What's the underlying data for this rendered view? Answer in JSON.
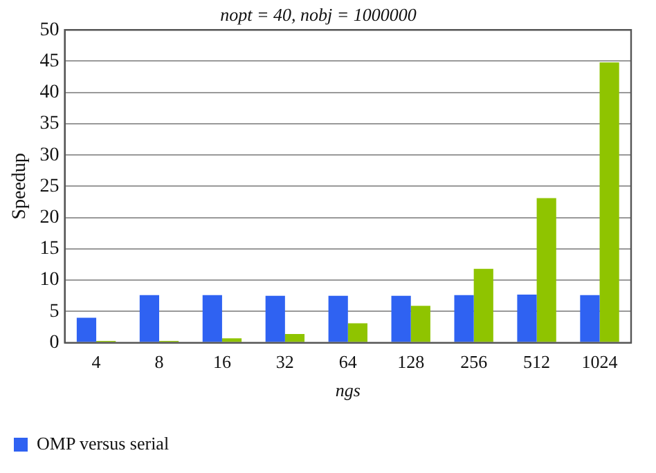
{
  "chart_data": {
    "type": "bar",
    "title": "nopt = 40, nobj = 1000000",
    "xlabel": "ngs",
    "ylabel": "Speedup",
    "categories": [
      "4",
      "8",
      "16",
      "32",
      "64",
      "128",
      "256",
      "512",
      "1024"
    ],
    "series": [
      {
        "name": "OMP versus serial",
        "color": "#2f62f2",
        "values": [
          4.0,
          7.6,
          7.6,
          7.5,
          7.5,
          7.5,
          7.6,
          7.7,
          7.6
        ]
      },
      {
        "color": "#8fc400",
        "values": [
          0.3,
          0.3,
          0.7,
          1.4,
          3.1,
          5.9,
          11.8,
          23.1,
          44.8
        ]
      }
    ],
    "ylim": [
      0,
      50
    ],
    "yticks": [
      0,
      5,
      10,
      15,
      20,
      25,
      30,
      35,
      40,
      45,
      50
    ],
    "grid": "y",
    "legend": "bottom left"
  }
}
